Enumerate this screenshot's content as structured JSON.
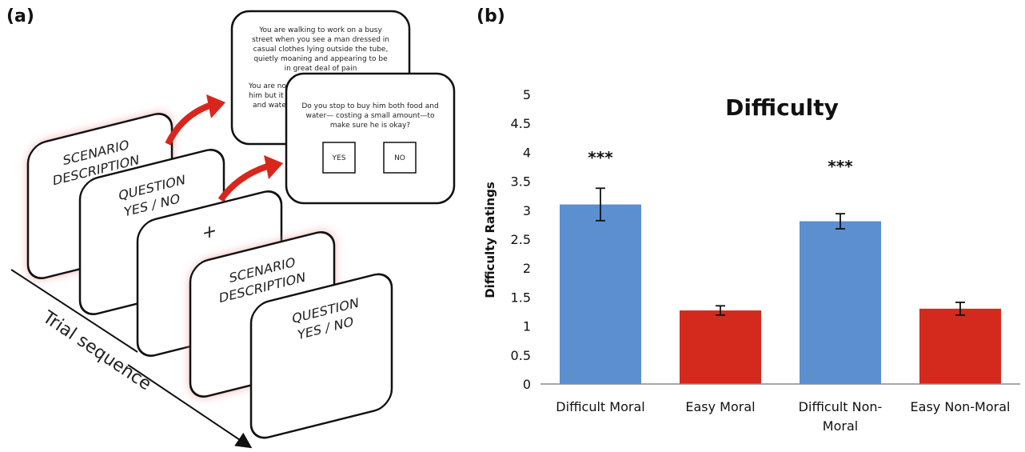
{
  "panel_a": {
    "label": "(a)",
    "card_scenario": [
      "SCENARIO",
      "DESCRIPTION"
    ],
    "card_question": [
      "QUESTION",
      "YES / NO"
    ],
    "card_fixation": "+",
    "scenario_text_lines": [
      "You are walking to work on a busy",
      "street when you see a man dressed in",
      "casual clothes lying outside the tube,",
      "quietly moaning and appearing to be",
      "in great deal of pain"
    ],
    "scenario_partial_lines": [
      "You are no",
      "him but it",
      "and wate"
    ],
    "question_text_lines": [
      "Do you stop to buy him both food and",
      "water— costing a small amount—to",
      "make sure he is okay?"
    ],
    "yes_button": "YES",
    "no_button": "NO",
    "axis_label": "Trial sequence",
    "accent_color": "#d9261c",
    "glow_color": "#e8a0a0"
  },
  "panel_b": {
    "label": "(b)"
  },
  "chart_data": {
    "type": "bar",
    "title": "Difficulty",
    "xlabel": "",
    "ylabel": "Difficulty Ratings",
    "ylim": [
      0,
      5
    ],
    "yticks": [
      "0",
      "0.5",
      "1",
      "1.5",
      "2",
      "2.5",
      "3",
      "3.5",
      "4",
      "4.5",
      "5"
    ],
    "categories": [
      [
        "Difficult Moral"
      ],
      [
        "Easy Moral"
      ],
      [
        "Difficult Non-",
        "Moral"
      ],
      [
        "Easy Non-Moral"
      ]
    ],
    "values": [
      3.1,
      1.27,
      2.81,
      1.3
    ],
    "errors": [
      0.28,
      0.08,
      0.13,
      0.11
    ],
    "colors": [
      "#5b8fd0",
      "#d42a1e",
      "#5b8fd0",
      "#d42a1e"
    ],
    "annotations": [
      {
        "category_index": 0,
        "text": "***",
        "y": 3.95
      },
      {
        "category_index": 2,
        "text": "***",
        "y": 3.8
      }
    ],
    "grid": false,
    "legend": "none"
  }
}
